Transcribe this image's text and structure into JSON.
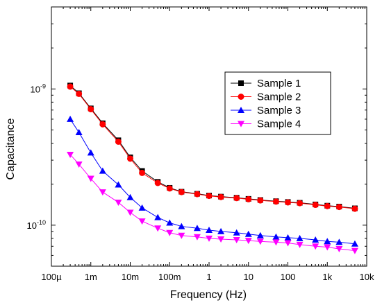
{
  "chart_data": {
    "type": "line",
    "xlabel": "Frequency (Hz)",
    "ylabel": "Capacitance",
    "x_scale": "log",
    "y_scale": "log",
    "xlim": [
      0.0001,
      10000
    ],
    "ylim": [
      5e-11,
      4e-09
    ],
    "x_ticks": [
      {
        "value": 0.0001,
        "label": "100µ"
      },
      {
        "value": 0.001,
        "label": "1m"
      },
      {
        "value": 0.01,
        "label": "10m"
      },
      {
        "value": 0.1,
        "label": "100m"
      },
      {
        "value": 1,
        "label": "1"
      },
      {
        "value": 10,
        "label": "10"
      },
      {
        "value": 100,
        "label": "100"
      },
      {
        "value": 1000,
        "label": "1k"
      },
      {
        "value": 10000,
        "label": "10k"
      }
    ],
    "y_ticks": [
      {
        "value": 1e-10,
        "mantissa": "10",
        "exponent": "-10"
      },
      {
        "value": 1e-09,
        "mantissa": "10",
        "exponent": "-9"
      }
    ],
    "grid": false,
    "legend_position": "top-right",
    "x": [
      0.0003,
      0.0005,
      0.001,
      0.002,
      0.005,
      0.01,
      0.02,
      0.05,
      0.1,
      0.2,
      0.5,
      1,
      2,
      5,
      10,
      20,
      50,
      100,
      200,
      500,
      1000,
      2000,
      5000
    ],
    "series": [
      {
        "name": "Sample 1",
        "color": "#000000",
        "marker": "square",
        "values": [
          1.06e-09,
          9.3e-10,
          7.2e-10,
          5.6e-10,
          4.2e-10,
          3.15e-10,
          2.5e-10,
          2.08e-10,
          1.88e-10,
          1.76e-10,
          1.7e-10,
          1.65e-10,
          1.62e-10,
          1.59e-10,
          1.56e-10,
          1.53e-10,
          1.5e-10,
          1.48e-10,
          1.46e-10,
          1.42e-10,
          1.39e-10,
          1.37e-10,
          1.33e-10
        ]
      },
      {
        "name": "Sample 2",
        "color": "#ff0000",
        "marker": "circle",
        "values": [
          1.04e-09,
          9.2e-10,
          7.1e-10,
          5.5e-10,
          4.1e-10,
          3.08e-10,
          2.42e-10,
          2.04e-10,
          1.86e-10,
          1.75e-10,
          1.69e-10,
          1.64e-10,
          1.61e-10,
          1.58e-10,
          1.55e-10,
          1.52e-10,
          1.49e-10,
          1.47e-10,
          1.45e-10,
          1.41e-10,
          1.38e-10,
          1.36e-10,
          1.32e-10
        ]
      },
      {
        "name": "Sample 3",
        "color": "#0000ff",
        "marker": "triangle-up",
        "values": [
          6e-10,
          4.8e-10,
          3.4e-10,
          2.5e-10,
          1.98e-10,
          1.6e-10,
          1.34e-10,
          1.14e-10,
          1.04e-10,
          9.8e-11,
          9.5e-11,
          9.2e-11,
          9e-11,
          8.8e-11,
          8.6e-11,
          8.4e-11,
          8.2e-11,
          8.1e-11,
          8e-11,
          7.8e-11,
          7.6e-11,
          7.5e-11,
          7.3e-11
        ]
      },
      {
        "name": "Sample 4",
        "color": "#ff00ff",
        "marker": "triangle-down",
        "values": [
          3.3e-10,
          2.8e-10,
          2.2e-10,
          1.75e-10,
          1.47e-10,
          1.24e-10,
          1.07e-10,
          9.5e-11,
          8.8e-11,
          8.4e-11,
          8.2e-11,
          8e-11,
          7.9e-11,
          7.8e-11,
          7.7e-11,
          7.6e-11,
          7.5e-11,
          7.4e-11,
          7.2e-11,
          7e-11,
          6.9e-11,
          6.7e-11,
          6.5e-11
        ]
      }
    ]
  }
}
